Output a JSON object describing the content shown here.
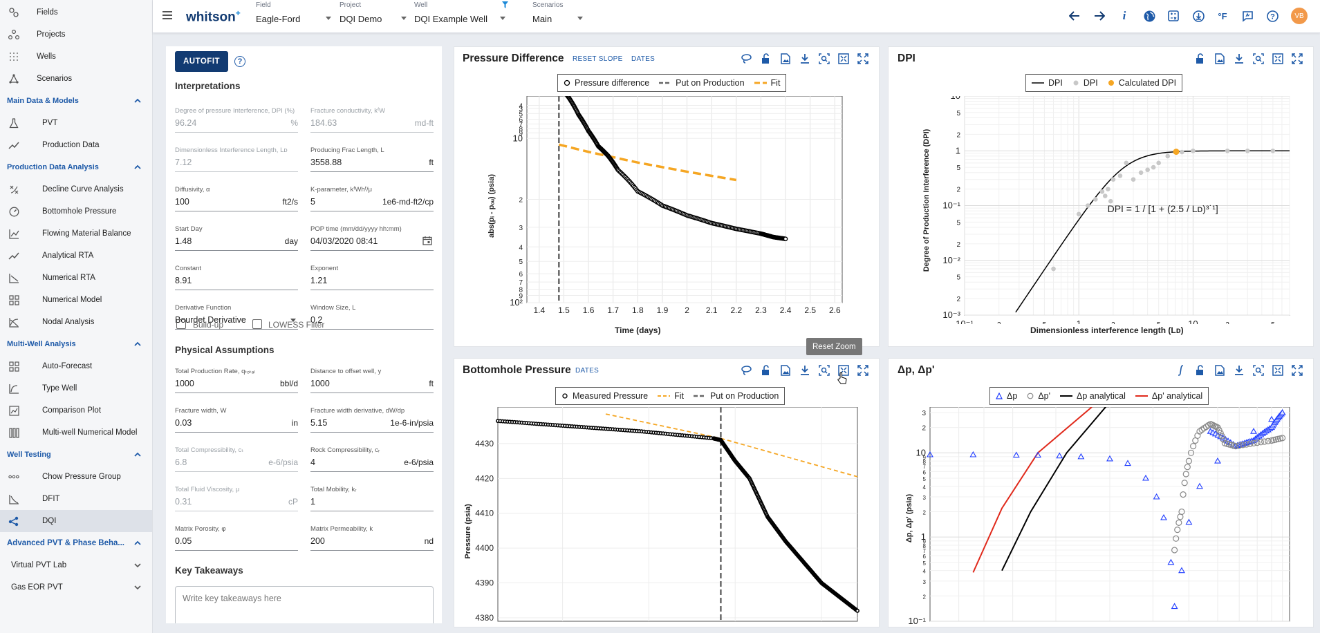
{
  "app": {
    "logo": "whitson",
    "logo_sup": "+"
  },
  "topbar": {
    "field": {
      "caption": "Field",
      "value": "Eagle-Ford"
    },
    "project": {
      "caption": "Project",
      "value": "DQI Demo"
    },
    "well": {
      "caption": "Well",
      "value": "DQI Example Well"
    },
    "scenarios": {
      "caption": "Scenarios",
      "value": "Main"
    },
    "icons": [
      "arrow-left-icon",
      "arrow-right-icon",
      "info-icon",
      "globe-icon",
      "calculator-icon",
      "download-circle-icon",
      "fahrenheit-icon",
      "feedback-icon",
      "help-icon"
    ],
    "avatar": "VB"
  },
  "sidebar": {
    "top": [
      {
        "label": "Fields",
        "icon": "fields-icon"
      },
      {
        "label": "Projects",
        "icon": "projects-icon"
      },
      {
        "label": "Wells",
        "icon": "wells-icon"
      },
      {
        "label": "Scenarios",
        "icon": "scenarios-icon"
      }
    ],
    "sections": [
      {
        "title": "Main Data & Models",
        "items": [
          {
            "label": "PVT",
            "icon": "flask-icon"
          },
          {
            "label": "Production Data",
            "icon": "trend-icon"
          }
        ]
      },
      {
        "title": "Production Data Analysis",
        "items": [
          {
            "label": "Decline Curve Analysis",
            "icon": "decline-icon"
          },
          {
            "label": "Bottomhole Pressure",
            "icon": "gauge-icon"
          },
          {
            "label": "Flowing Material Balance",
            "icon": "chart-icon"
          },
          {
            "label": "Analytical RTA",
            "icon": "trend-icon"
          },
          {
            "label": "Numerical RTA",
            "icon": "numerical-icon"
          },
          {
            "label": "Numerical Model",
            "icon": "grid-icon"
          },
          {
            "label": "Nodal Analysis",
            "icon": "nodal-icon"
          }
        ]
      },
      {
        "title": "Multi-Well Analysis",
        "items": [
          {
            "label": "Auto-Forecast",
            "icon": "grid-icon"
          },
          {
            "label": "Type Well",
            "icon": "curve-icon"
          },
          {
            "label": "Comparison Plot",
            "icon": "compare-icon"
          },
          {
            "label": "Multi-well Numerical Model",
            "icon": "columns-icon"
          }
        ]
      },
      {
        "title": "Well Testing",
        "items": [
          {
            "label": "Chow Pressure Group",
            "icon": "dots-icon"
          },
          {
            "label": "DFIT",
            "icon": "dfit-icon"
          },
          {
            "label": "DQI",
            "icon": "share-icon",
            "active": true
          }
        ]
      }
    ],
    "collapsed": [
      {
        "label": "Advanced PVT & Phase Beha...",
        "bold": true
      },
      {
        "label": "Virtual PVT Lab"
      },
      {
        "label": "Gas EOR PVT"
      }
    ]
  },
  "form": {
    "autofit": "AUTOFIT",
    "interpretations": "Interpretations",
    "fields": [
      {
        "caption": "Degree of pressure Interference, DPI (%)",
        "value": "96.24",
        "unit": "%",
        "disabled": true
      },
      {
        "caption": "Fracture conductivity, kᶠW",
        "value": "184.63",
        "unit": "md-ft",
        "disabled": true
      },
      {
        "caption": "Dimensionless Interference Length, Lᴅ",
        "value": "7.12",
        "unit": "",
        "disabled": true
      },
      {
        "caption": "Producing Frac Length, L",
        "value": "3558.88",
        "unit": "ft",
        "disabled": false
      },
      {
        "caption": "Diffusivity, α",
        "value": "100",
        "unit": "ft2/s",
        "disabled": false
      },
      {
        "caption": "K-parameter, kᶠWhᶠ/μ",
        "value": "5",
        "unit": "1e6-md-ft2/cp",
        "disabled": false
      },
      {
        "caption": "Start Day",
        "value": "1.48",
        "unit": "day",
        "disabled": false
      },
      {
        "caption": "POP time (mm/dd/yyyy hh:mm)",
        "value": "04/03/2020 08:41",
        "unit": "",
        "disabled": false
      },
      {
        "caption": "Constant",
        "value": "8.91",
        "unit": "",
        "disabled": false
      },
      {
        "caption": "Exponent",
        "value": "1.21",
        "unit": "",
        "disabled": false
      },
      {
        "caption": "Derivative Function",
        "value": "Bourdet Derivative",
        "unit": "",
        "disabled": false
      },
      {
        "caption": "Window Size, L",
        "value": "0.2",
        "unit": "",
        "disabled": false
      }
    ],
    "buildup": "Build-up",
    "lowess": "LOWESS Filter",
    "physical": "Physical Assumptions",
    "phys_fields": [
      {
        "caption": "Total Production Rate, qₜₒₜₐₗ",
        "value": "1000",
        "unit": "bbl/d",
        "disabled": false
      },
      {
        "caption": "Distance to offset well, y",
        "value": "1000",
        "unit": "ft",
        "disabled": false
      },
      {
        "caption": "Fracture width, W",
        "value": "0.03",
        "unit": "in",
        "disabled": false
      },
      {
        "caption": "Fracture width derivative, dW/dp",
        "value": "5.15",
        "unit": "1e-6-in/psia",
        "disabled": false
      },
      {
        "caption": "Total Compressibility, cₜ",
        "value": "6.8",
        "unit": "e-6/psia",
        "disabled": true
      },
      {
        "caption": "Rock Compressibility, cᵣ",
        "value": "4",
        "unit": "e-6/psia",
        "disabled": false
      },
      {
        "caption": "Total Fluid Viscosity, μ",
        "value": "0.31",
        "unit": "cP",
        "disabled": true
      },
      {
        "caption": "Total Mobility, kᵣ",
        "value": "1",
        "unit": "",
        "disabled": false
      },
      {
        "caption": "Matrix Porosity, φ",
        "value": "0.05",
        "unit": "",
        "disabled": false
      },
      {
        "caption": "Matrix Permeability, k",
        "value": "200",
        "unit": "nd",
        "disabled": false
      }
    ],
    "takeaways_title": "Key Takeaways",
    "takeaways_placeholder": "Write key takeaways here"
  },
  "panels": {
    "pd": {
      "title": "Pressure Difference",
      "links": [
        "RESET SLOPE",
        "DATES"
      ]
    },
    "dpi": {
      "title": "DPI"
    },
    "bhp": {
      "title": "Bottomhole Pressure",
      "links": [
        "DATES"
      ],
      "tooltip": "Reset Zoom"
    },
    "dp": {
      "title": "Δp, Δp'"
    }
  },
  "chart_data": [
    {
      "type": "scatter",
      "legend": [
        "Pressure difference",
        "Put on Production",
        "Fit"
      ],
      "xlabel": "Time (days)",
      "ylabel": "abs(pᵢ - pₒᵤ) (psia)",
      "xlim": [
        1.35,
        2.63
      ],
      "x_ticks": [
        "1.4",
        "1.5",
        "1.6",
        "1.7",
        "1.8",
        "1.9",
        "2",
        "2.1",
        "2.2",
        "2.3",
        "2.4",
        "2.5",
        "2.6"
      ],
      "y_scale": "log",
      "y_tick_labels": [
        "3",
        "4",
        "5",
        "6",
        "7",
        "8",
        "9",
        "10",
        "2",
        "3",
        "4",
        "5",
        "6",
        "7",
        "8",
        "9",
        "10²"
      ],
      "put_on_production_x": 1.48,
      "series": [
        {
          "name": "Pressure difference",
          "x": [
            1.35,
            1.42,
            1.48,
            1.52,
            1.56,
            1.6,
            1.64,
            1.68,
            1.72,
            1.8,
            1.9,
            2.0,
            2.1,
            2.2,
            2.3,
            2.35,
            2.4
          ],
          "y": [
            5.2,
            5.0,
            4.7,
            3.8,
            2.8,
            2.1,
            1.6,
            1.35,
            1.05,
            0.72,
            0.56,
            0.47,
            0.41,
            0.37,
            0.34,
            0.32,
            0.31
          ]
        },
        {
          "name": "Fit",
          "x": [
            1.48,
            1.6,
            1.8,
            2.0,
            2.2
          ],
          "y": [
            1.65,
            1.45,
            1.2,
            1.02,
            0.88
          ]
        }
      ]
    },
    {
      "type": "line",
      "legend": [
        "DPI",
        "DPI",
        "Calculated DPI"
      ],
      "xlabel": "Dimensionless interference length (Lᴅ)",
      "ylabel": "Degree of Production Interference (DPI)",
      "x_scale": "log",
      "y_scale": "log",
      "xlim": [
        0.1,
        70
      ],
      "ylim": [
        0.001,
        10
      ],
      "annotation": "DPI = 1 / [1 + (2.5 / Lᴅ)³˙¹]",
      "series": [
        {
          "name": "DPI",
          "x": [
            0.28,
            0.5,
            1,
            2,
            3,
            5,
            7.12,
            10,
            20,
            50
          ],
          "y": [
            0.001,
            0.0058,
            0.039,
            0.33,
            0.57,
            0.9,
            0.962,
            0.99,
            1,
            1
          ]
        },
        {
          "name": "DPI",
          "x": [
            0.6,
            1.0,
            1.2,
            1.4,
            1.6,
            1.7,
            1.8,
            1.9,
            2.0,
            2.3,
            2.6,
            3.0,
            3.5,
            4.0,
            4.5,
            5.0,
            6.0,
            8.0,
            10,
            20,
            30,
            50
          ],
          "y": [
            0.007,
            0.07,
            0.1,
            0.13,
            0.18,
            0.15,
            0.2,
            0.12,
            0.3,
            0.35,
            0.6,
            0.3,
            0.4,
            0.45,
            0.5,
            0.6,
            0.8,
            0.95,
            1,
            1,
            1,
            1
          ]
        },
        {
          "name": "Calculated DPI",
          "x": [
            7.12
          ],
          "y": [
            0.962
          ]
        }
      ]
    },
    {
      "type": "scatter",
      "legend": [
        "Measured Pressure",
        "Fit",
        "Put on Production"
      ],
      "ylabel": "Pressure (psia)",
      "ylim": [
        4380,
        4440
      ],
      "y_ticks": [
        "4430",
        "4420",
        "4410",
        "4400",
        "4390",
        "4380"
      ],
      "series": [
        {
          "name": "Measured Pressure",
          "x": [
            0.0,
            0.2,
            0.4,
            0.6,
            0.62,
            0.66,
            0.7,
            0.75,
            0.8,
            0.85,
            0.9,
            0.95,
            1.0
          ],
          "y": [
            4436.5,
            4435,
            4433.5,
            4431.5,
            4431,
            4425,
            4420,
            4409,
            4402,
            4396,
            4390,
            4386,
            4382
          ]
        },
        {
          "name": "Fit",
          "x": [
            0.3,
            0.62,
            1.0
          ],
          "y": [
            4438.5,
            4431.5,
            4420.5
          ]
        }
      ]
    },
    {
      "type": "scatter",
      "legend": [
        "Δp",
        "Δp'",
        "Δp analytical",
        "Δp' analytical"
      ],
      "ylabel": "Δp, Δp' (psia)",
      "y_scale": "log",
      "y_tick_labels": [
        "3",
        "2",
        "10",
        "9",
        "8",
        "7",
        "6",
        "5",
        "4",
        "3",
        "2",
        "1",
        "9",
        "8",
        "7",
        "6",
        "5",
        "4",
        "3",
        "2",
        "10⁻¹"
      ],
      "series": [
        {
          "name": "Δp",
          "x": [
            0,
            0.12,
            0.24,
            0.3,
            0.36,
            0.42,
            0.5,
            0.55,
            0.6,
            0.63,
            0.65,
            0.67,
            0.68,
            0.7,
            0.72,
            0.75,
            0.8,
            0.85,
            0.9,
            0.95,
            0.98
          ],
          "y": [
            9.5,
            9.5,
            9.4,
            9.4,
            9.2,
            9.0,
            8.5,
            7.5,
            5,
            3,
            1.7,
            0.5,
            0.15,
            0.4,
            1.5,
            4,
            8,
            12,
            18,
            25,
            30
          ]
        },
        {
          "name": "Δp'",
          "x": [
            0.68,
            0.7,
            0.72,
            0.75,
            0.78,
            0.8,
            0.82,
            0.85,
            0.9,
            0.95,
            0.98
          ],
          "y": [
            0.7,
            2,
            8,
            18,
            22,
            20,
            13,
            12,
            13,
            14,
            15
          ]
        },
        {
          "name": "Δp analytical",
          "x": [
            0.2,
            0.28,
            0.38,
            0.5
          ],
          "y": [
            0.4,
            2,
            10,
            40
          ]
        },
        {
          "name": "Δp' analytical",
          "x": [
            0.12,
            0.2,
            0.3,
            0.45
          ],
          "y": [
            0.38,
            2.2,
            10,
            35
          ]
        }
      ]
    }
  ]
}
